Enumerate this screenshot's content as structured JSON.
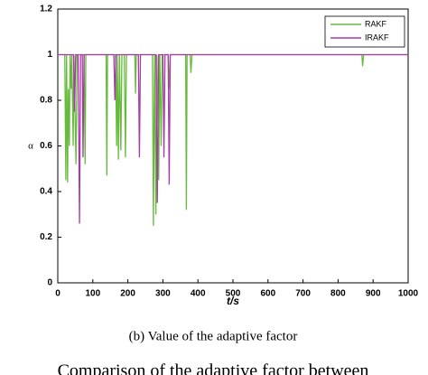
{
  "chart_data": {
    "type": "line",
    "caption": "(b)  Value of the adaptive factor",
    "footer_text": "Comparison of the adaptive factor between",
    "xlabel": "t/s",
    "ylabel": "α",
    "xlim": [
      0,
      1000
    ],
    "xticks": [
      0,
      100,
      200,
      300,
      400,
      500,
      600,
      700,
      800,
      900,
      1000
    ],
    "ylim": [
      0,
      1.2
    ],
    "yticks": [
      0,
      0.2,
      0.4,
      0.6,
      0.8,
      1,
      1.2
    ],
    "legend": "upper right",
    "series": [
      {
        "name": "RAKF",
        "color": "#66bb3c",
        "x": [
          0,
          20,
          23,
          25,
          28,
          30,
          33,
          35,
          38,
          40,
          44,
          46,
          52,
          55,
          75,
          78,
          80,
          138,
          140,
          142,
          165,
          168,
          170,
          173,
          176,
          180,
          183,
          190,
          193,
          196,
          220,
          222,
          224,
          270,
          273,
          276,
          280,
          283,
          288,
          291,
          295,
          298,
          315,
          318,
          321,
          365,
          367,
          369,
          378,
          380,
          383,
          868,
          870,
          873,
          1000
        ],
        "values": [
          1,
          1,
          0.45,
          1,
          0.44,
          0.85,
          0.6,
          1,
          0.85,
          1,
          0.6,
          1,
          0.52,
          1,
          1,
          0.52,
          1,
          1,
          0.47,
          1,
          1,
          0.6,
          1,
          0.54,
          1,
          0.58,
          1,
          1,
          0.55,
          1,
          1,
          0.83,
          1,
          1,
          0.25,
          1,
          0.3,
          1,
          0.45,
          1,
          0.6,
          1,
          1,
          0.85,
          1,
          1,
          0.32,
          1,
          1,
          0.92,
          1,
          1,
          0.95,
          1,
          1
        ]
      },
      {
        "name": "IRAKF",
        "color": "#a83aa8",
        "x": [
          0,
          45,
          48,
          51,
          58,
          62,
          65,
          70,
          72,
          75,
          160,
          163,
          166,
          230,
          233,
          236,
          280,
          284,
          288,
          300,
          303,
          306,
          315,
          318,
          321,
          1000
        ],
        "values": [
          1,
          1,
          0.75,
          1,
          1,
          0.26,
          1,
          1,
          0.55,
          1,
          1,
          0.8,
          1,
          1,
          0.55,
          1,
          1,
          0.35,
          1,
          1,
          0.55,
          1,
          1,
          0.43,
          1,
          1
        ]
      }
    ]
  }
}
